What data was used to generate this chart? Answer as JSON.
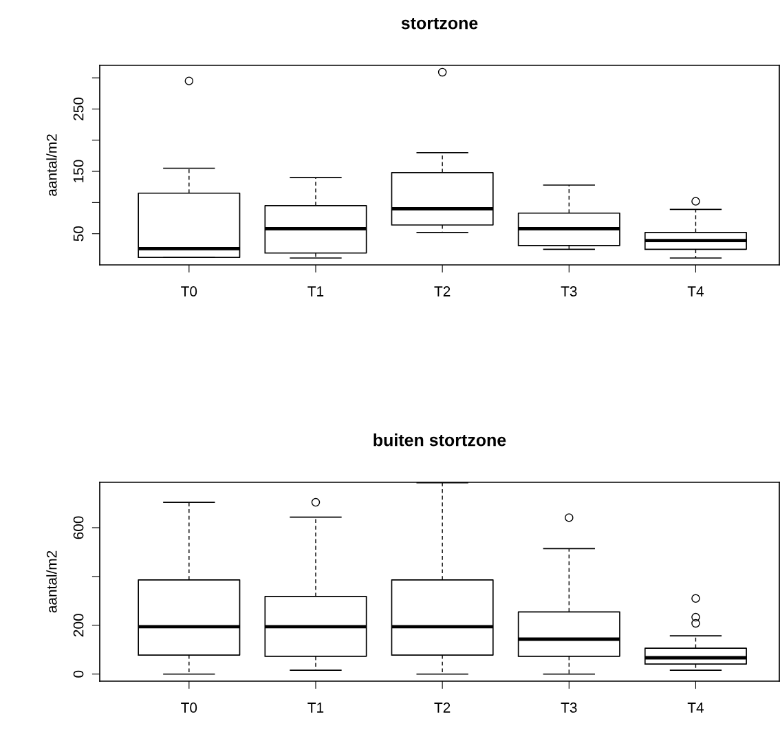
{
  "chart_data": [
    {
      "type": "box",
      "title": "stortzone",
      "ylabel": "aantal/m2",
      "categories": [
        "T0",
        "T1",
        "T2",
        "T3",
        "T4"
      ],
      "boxes": [
        {
          "low": 12,
          "q1": 12,
          "median": 26,
          "q3": 115,
          "high": 155,
          "outliers": [
            295
          ]
        },
        {
          "low": 11,
          "q1": 19,
          "median": 58,
          "q3": 95,
          "high": 140
        },
        {
          "low": 52,
          "q1": 64,
          "median": 90,
          "q3": 148,
          "high": 180,
          "outliers": [
            309
          ]
        },
        {
          "low": 25,
          "q1": 31,
          "median": 58,
          "q3": 83,
          "high": 128
        },
        {
          "low": 11,
          "q1": 25,
          "median": 39,
          "q3": 52,
          "high": 89,
          "outliers": [
            102
          ]
        }
      ],
      "ylim": [
        0,
        320
      ],
      "yticks": [
        50,
        {
          "value": 100,
          "label": null
        },
        150,
        {
          "value": 200,
          "label": null
        },
        250,
        {
          "value": 300,
          "label": null
        }
      ],
      "grid": false,
      "legend": false
    },
    {
      "type": "box",
      "title": "buiten stortzone",
      "ylabel": "aantal/m2",
      "categories": [
        "T0",
        "T1",
        "T2",
        "T3",
        "T4"
      ],
      "boxes": [
        {
          "low": 0,
          "q1": 78,
          "median": 194,
          "q3": 386,
          "high": 704
        },
        {
          "low": 16,
          "q1": 73,
          "median": 194,
          "q3": 318,
          "high": 643,
          "outliers": [
            704
          ]
        },
        {
          "low": 0,
          "q1": 78,
          "median": 194,
          "q3": 386,
          "high": 784
        },
        {
          "low": 0,
          "q1": 73,
          "median": 143,
          "q3": 255,
          "high": 514,
          "outliers": [
            641
          ]
        },
        {
          "low": 16,
          "q1": 41,
          "median": 67,
          "q3": 106,
          "high": 157,
          "outliers": [
            310,
            233,
            208
          ]
        }
      ],
      "ylim": [
        -29,
        786
      ],
      "yticks": [
        0,
        200,
        {
          "value": 400,
          "label": null
        },
        600
      ],
      "grid": false,
      "legend": false
    }
  ]
}
